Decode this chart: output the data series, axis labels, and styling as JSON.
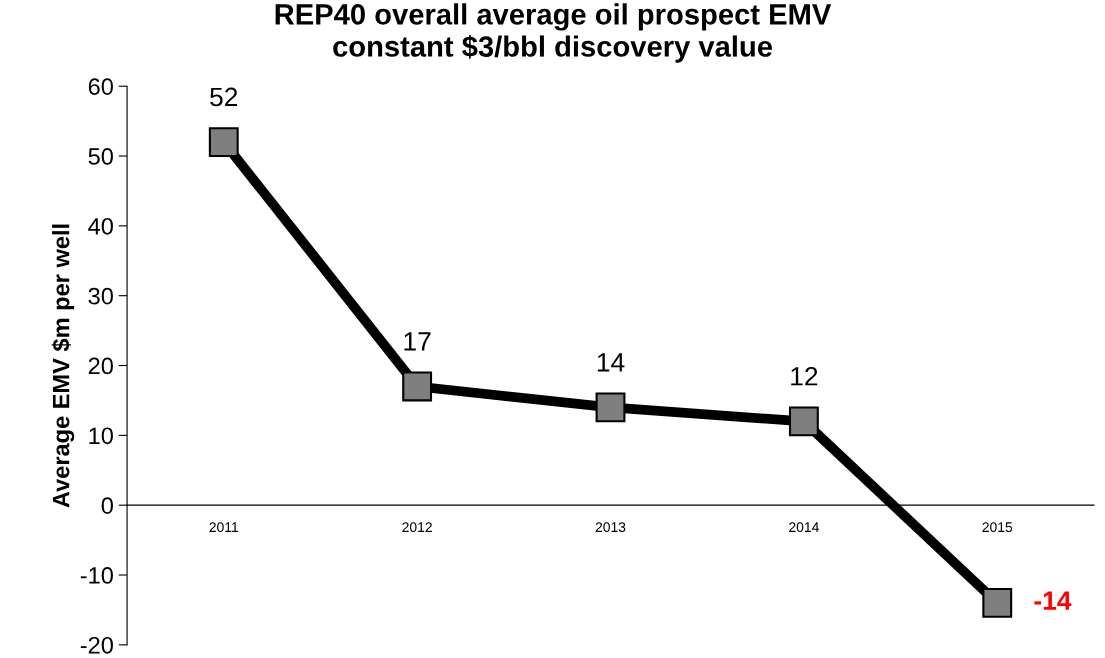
{
  "chart_data": {
    "type": "line",
    "title": "REP40 overall average oil prospect EMV\nconstant $3/bbl discovery value",
    "ylabel": "Average EMV $m per well",
    "categories": [
      "2011",
      "2012",
      "2013",
      "2014",
      "2015"
    ],
    "series": [
      {
        "color": "#000000",
        "values": [
          52,
          17,
          14,
          12,
          -14
        ],
        "value_labels": [
          "52",
          "17",
          "14",
          "12",
          null
        ]
      }
    ],
    "annotations": [
      {
        "text": "-14",
        "x": "2015",
        "y": -14
      }
    ],
    "ylim": [
      -20,
      60
    ],
    "yticks": [
      -20,
      -10,
      0,
      10,
      20,
      30,
      40,
      50,
      60
    ],
    "marker": "square",
    "line_style": "solid",
    "grid": false,
    "legend": false
  }
}
